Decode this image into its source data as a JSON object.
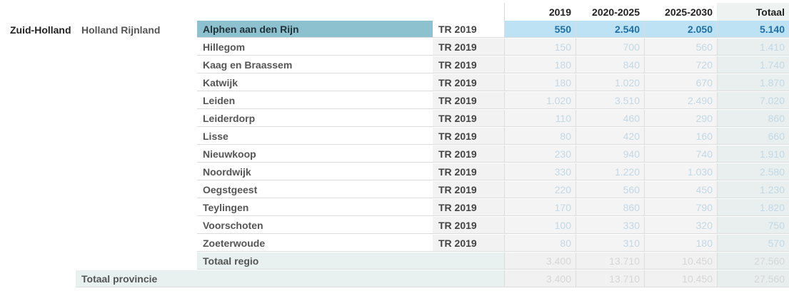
{
  "columns": [
    "2019",
    "2020-2025",
    "2025-2030",
    "Totaal"
  ],
  "province": "Zuid-Holland",
  "region": "Holland Rijnland",
  "code_label": "TR 2019",
  "rows": [
    {
      "name": "Alphen aan den Rijn",
      "values": [
        "550",
        "2.540",
        "2.050",
        "5.140"
      ]
    },
    {
      "name": "Hillegom",
      "values": [
        "150",
        "700",
        "560",
        "1.410"
      ]
    },
    {
      "name": "Kaag en Braassem",
      "values": [
        "180",
        "840",
        "720",
        "1.740"
      ]
    },
    {
      "name": "Katwijk",
      "values": [
        "180",
        "1.020",
        "670",
        "1.870"
      ]
    },
    {
      "name": "Leiden",
      "values": [
        "1.020",
        "3.510",
        "2.490",
        "7.020"
      ]
    },
    {
      "name": "Leiderdorp",
      "values": [
        "110",
        "460",
        "290",
        "860"
      ]
    },
    {
      "name": "Lisse",
      "values": [
        "80",
        "420",
        "160",
        "660"
      ]
    },
    {
      "name": "Nieuwkoop",
      "values": [
        "230",
        "940",
        "740",
        "1.910"
      ]
    },
    {
      "name": "Noordwijk",
      "values": [
        "330",
        "1.220",
        "1.030",
        "2.580"
      ]
    },
    {
      "name": "Oegstgeest",
      "values": [
        "220",
        "560",
        "450",
        "1.230"
      ]
    },
    {
      "name": "Teylingen",
      "values": [
        "170",
        "860",
        "790",
        "1.820"
      ]
    },
    {
      "name": "Voorschoten",
      "values": [
        "100",
        "330",
        "320",
        "750"
      ]
    },
    {
      "name": "Zoeterwoude",
      "values": [
        "80",
        "310",
        "180",
        "570"
      ]
    }
  ],
  "region_total": {
    "label": "Totaal regio",
    "values": [
      "3.400",
      "13.710",
      "10.450",
      "27.560"
    ]
  },
  "province_total": {
    "label": "Totaal provincie",
    "values": [
      "3.400",
      "13.710",
      "10.450",
      "27.560"
    ]
  }
}
